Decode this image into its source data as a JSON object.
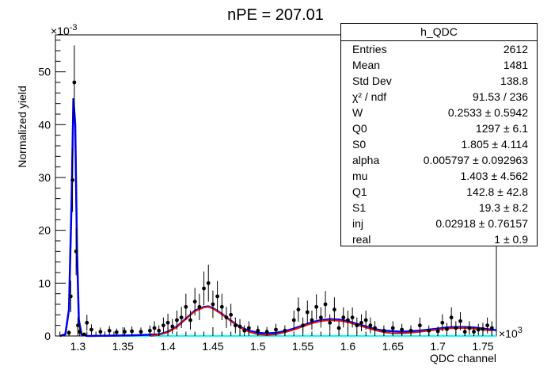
{
  "chart_data": {
    "type": "scatter",
    "title": "nPE = 207.01",
    "xlabel": "QDC channel",
    "ylabel": "Normalized yield",
    "x_exponent": "×10^3",
    "y_exponent": "×10^-3",
    "xlim": [
      1.275,
      1.765
    ],
    "ylim": [
      0,
      57
    ],
    "x_ticks": [
      "1.3",
      "1.35",
      "1.4",
      "1.45",
      "1.5",
      "1.55",
      "1.6",
      "1.65",
      "1.7",
      "1.75"
    ],
    "y_ticks": [
      "0",
      "10",
      "20",
      "30",
      "40",
      "50"
    ],
    "points": {
      "x": [
        1.29,
        1.292,
        1.294,
        1.296,
        1.298,
        1.3,
        1.302,
        1.307,
        1.31,
        1.315,
        1.325,
        1.335,
        1.343,
        1.352,
        1.36,
        1.37,
        1.38,
        1.385,
        1.39,
        1.395,
        1.4,
        1.405,
        1.41,
        1.415,
        1.42,
        1.425,
        1.43,
        1.435,
        1.44,
        1.445,
        1.45,
        1.455,
        1.46,
        1.465,
        1.47,
        1.475,
        1.48,
        1.485,
        1.49,
        1.5,
        1.51,
        1.52,
        1.53,
        1.54,
        1.545,
        1.55,
        1.555,
        1.56,
        1.565,
        1.57,
        1.575,
        1.58,
        1.585,
        1.59,
        1.595,
        1.6,
        1.605,
        1.61,
        1.615,
        1.62,
        1.625,
        1.63,
        1.64,
        1.65,
        1.66,
        1.67,
        1.68,
        1.69,
        1.7,
        1.705,
        1.71,
        1.715,
        1.72,
        1.725,
        1.73,
        1.735,
        1.74,
        1.745,
        1.75,
        1.755,
        1.76
      ],
      "y": [
        0.6,
        7.5,
        29.5,
        48.0,
        16.0,
        2.0,
        0.8,
        0.3,
        2.5,
        1.2,
        0.8,
        1.0,
        0.7,
        0.8,
        0.9,
        0.8,
        1.0,
        1.5,
        1.0,
        2.0,
        2.5,
        1.8,
        3.0,
        3.5,
        5.5,
        3.0,
        6.5,
        5.5,
        9.0,
        10.0,
        6.0,
        7.5,
        5.5,
        3.5,
        4.0,
        2.0,
        1.8,
        1.0,
        1.5,
        1.0,
        0.8,
        1.2,
        1.0,
        3.0,
        5.0,
        2.0,
        4.5,
        3.0,
        5.5,
        3.5,
        6.0,
        2.5,
        5.0,
        1.5,
        3.5,
        3.0,
        3.5,
        2.0,
        2.5,
        3.0,
        2.0,
        1.5,
        1.0,
        1.5,
        1.2,
        1.0,
        2.0,
        1.0,
        0.9,
        2.5,
        1.3,
        3.5,
        1.5,
        2.8,
        0.8,
        1.5,
        0.8,
        1.2,
        1.3,
        2.0,
        1.5
      ],
      "err": [
        0.5,
        3.0,
        6.0,
        7.0,
        4.5,
        1.5,
        0.8,
        0.3,
        1.5,
        1.0,
        0.8,
        0.9,
        0.7,
        0.8,
        0.9,
        0.8,
        1.0,
        1.3,
        1.0,
        1.5,
        1.7,
        1.4,
        1.8,
        2.0,
        2.5,
        1.8,
        2.6,
        2.5,
        3.2,
        3.5,
        2.6,
        2.9,
        2.5,
        2.0,
        2.1,
        1.5,
        1.4,
        1.0,
        1.3,
        1.0,
        0.9,
        1.1,
        1.0,
        1.8,
        2.3,
        1.5,
        2.2,
        1.8,
        2.4,
        1.9,
        2.5,
        1.6,
        2.3,
        1.3,
        1.9,
        1.8,
        1.9,
        1.5,
        1.6,
        1.8,
        1.5,
        1.3,
        1.0,
        1.3,
        1.1,
        1.0,
        1.5,
        1.0,
        0.9,
        1.6,
        1.2,
        1.9,
        1.3,
        1.7,
        0.9,
        1.3,
        0.9,
        1.1,
        1.2,
        1.5,
        1.3
      ]
    },
    "fit_total": {
      "color": "#0000ff",
      "x": [
        1.28,
        1.286,
        1.29,
        1.293,
        1.295,
        1.297,
        1.299,
        1.301,
        1.304,
        1.31,
        1.33,
        1.36,
        1.39,
        1.4,
        1.41,
        1.42,
        1.43,
        1.44,
        1.445,
        1.45,
        1.46,
        1.47,
        1.48,
        1.49,
        1.5,
        1.51,
        1.52,
        1.53,
        1.54,
        1.55,
        1.56,
        1.57,
        1.58,
        1.59,
        1.6,
        1.61,
        1.62,
        1.63,
        1.64,
        1.65,
        1.66,
        1.67,
        1.68,
        1.69,
        1.7,
        1.71,
        1.72,
        1.73,
        1.74,
        1.75,
        1.76,
        1.765
      ],
      "y": [
        0.0,
        0.3,
        5.0,
        26.0,
        45.0,
        40.0,
        16.0,
        3.0,
        0.3,
        0.0,
        0.05,
        0.1,
        0.3,
        0.8,
        1.8,
        3.3,
        4.8,
        5.5,
        5.6,
        5.3,
        4.2,
        2.9,
        1.7,
        1.0,
        0.6,
        0.5,
        0.6,
        0.9,
        1.4,
        2.0,
        2.6,
        3.0,
        3.2,
        3.1,
        2.8,
        2.3,
        1.8,
        1.3,
        1.0,
        0.9,
        0.8,
        0.9,
        1.0,
        1.2,
        1.4,
        1.6,
        1.7,
        1.7,
        1.6,
        1.4,
        1.2,
        1.1
      ]
    },
    "fit_peak": {
      "color": "#00ffff",
      "x": [
        1.28,
        1.286,
        1.29,
        1.293,
        1.295,
        1.297,
        1.299,
        1.301,
        1.304,
        1.31,
        1.765
      ],
      "y": [
        0.0,
        0.3,
        5.0,
        26.0,
        45.0,
        40.0,
        16.0,
        3.0,
        0.3,
        0.0,
        0.0
      ]
    },
    "fit_gauss": {
      "color": "#dd1111",
      "x": [
        1.38,
        1.39,
        1.4,
        1.41,
        1.42,
        1.43,
        1.44,
        1.445,
        1.45,
        1.46,
        1.47,
        1.48,
        1.49,
        1.5,
        1.51,
        1.52,
        1.53,
        1.54,
        1.55,
        1.56,
        1.57,
        1.58,
        1.59,
        1.6,
        1.61,
        1.62,
        1.63,
        1.64,
        1.65,
        1.66,
        1.67,
        1.68,
        1.69,
        1.7,
        1.71,
        1.72,
        1.73,
        1.74,
        1.75,
        1.76
      ],
      "y": [
        0.0,
        0.2,
        0.7,
        1.7,
        3.2,
        4.7,
        5.4,
        5.5,
        5.2,
        4.1,
        2.8,
        1.6,
        0.8,
        0.3,
        0.15,
        0.3,
        0.7,
        1.2,
        1.8,
        2.4,
        2.8,
        3.0,
        2.9,
        2.6,
        2.1,
        1.6,
        1.1,
        0.7,
        0.5,
        0.5,
        0.6,
        0.8,
        1.0,
        1.2,
        1.4,
        1.5,
        1.5,
        1.4,
        1.2,
        1.0
      ]
    }
  },
  "stats": {
    "title": "h_QDC",
    "rows": [
      {
        "label": "Entries",
        "value": "2612"
      },
      {
        "label": "Mean",
        "value": "1481"
      },
      {
        "label": "Std Dev",
        "value": "138.8"
      },
      {
        "label": "χ² / ndf",
        "value": "91.53 / 236"
      },
      {
        "label": "W",
        "value": "0.2533 ± 0.5942"
      },
      {
        "label": "Q0",
        "value": "1297 ± 6.1"
      },
      {
        "label": "S0",
        "value": "1.805 ± 4.114"
      },
      {
        "label": "alpha",
        "value": "0.005797 ± 0.092963"
      },
      {
        "label": "mu",
        "value": "1.403 ± 4.562"
      },
      {
        "label": "Q1",
        "value": "142.8 ± 42.8"
      },
      {
        "label": "S1",
        "value": "19.3 ± 8.2"
      },
      {
        "label": "inj",
        "value": "0.02918 ± 0.76157"
      },
      {
        "label": "real",
        "value": "1 ± 0.9"
      }
    ]
  }
}
